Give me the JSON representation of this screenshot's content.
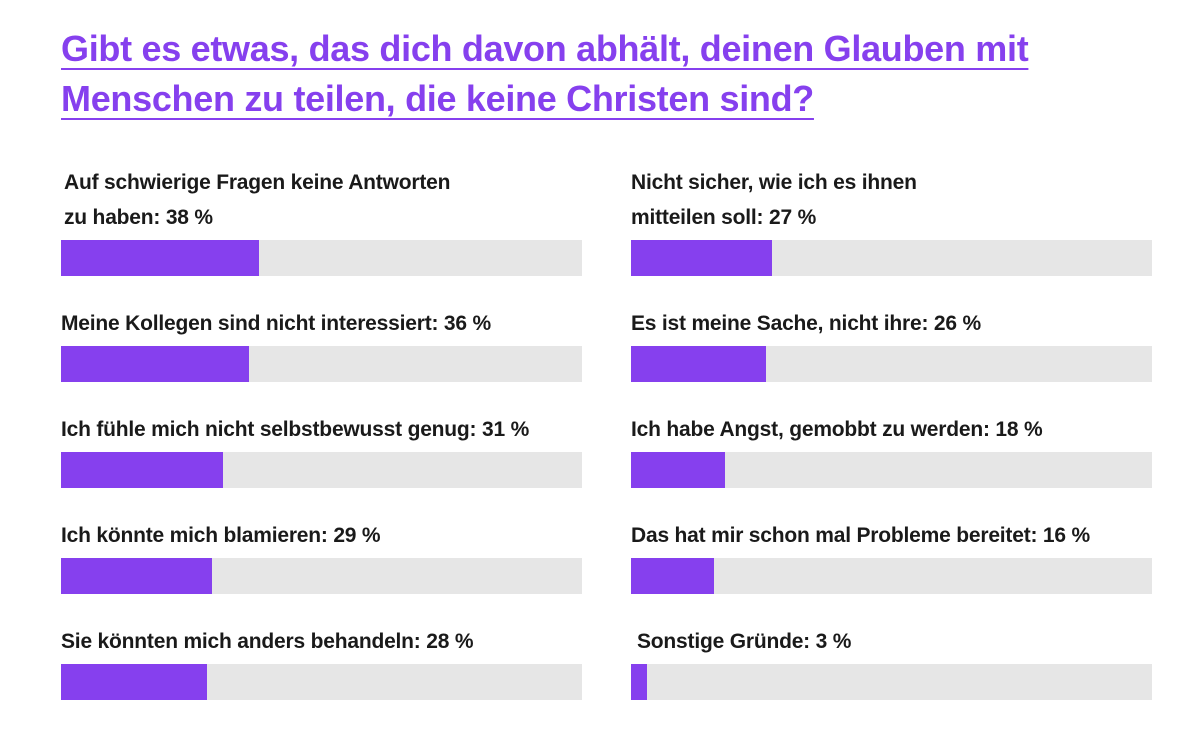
{
  "title_lines": [
    "Gibt es etwas, das dich davon abhält, deinen Glauben mit",
    "Menschen zu teilen, die keine Christen sind?"
  ],
  "colors": {
    "accent": "#8640ee",
    "track": "#e6e6e6",
    "text": "#1a1a1a"
  },
  "chart_data": {
    "type": "bar",
    "orientation": "horizontal",
    "title": "Gibt es etwas, das dich davon abhält, deinen Glauben mit Menschen zu teilen, die keine Christen sind?",
    "unit": "%",
    "xlim": [
      0,
      100
    ],
    "items": [
      {
        "lines": [
          "Auf schwierige Fragen keine Antworten",
          "zu haben: 38 %"
        ],
        "value": 38
      },
      {
        "lines": [
          "Meine Kollegen sind nicht interessiert: 36 %"
        ],
        "value": 36
      },
      {
        "lines": [
          "Ich fühle mich nicht selbstbewusst genug: 31 %"
        ],
        "value": 31
      },
      {
        "lines": [
          "Ich könnte mich blamieren: 29 %"
        ],
        "value": 29
      },
      {
        "lines": [
          "Sie könnten mich anders behandeln: 28 %"
        ],
        "value": 28
      },
      {
        "lines": [
          "Nicht sicher, wie ich es ihnen",
          "mitteilen soll: 27 %"
        ],
        "value": 27
      },
      {
        "lines": [
          "Es ist meine Sache, nicht ihre: 26 %"
        ],
        "value": 26
      },
      {
        "lines": [
          "Ich habe Angst, gemobbt zu werden: 18 %"
        ],
        "value": 18
      },
      {
        "lines": [
          "Das hat mir schon mal Probleme bereitet: 16 %"
        ],
        "value": 16
      },
      {
        "lines": [
          "Sonstige Gründe: 3 %"
        ],
        "value": 3
      }
    ]
  }
}
